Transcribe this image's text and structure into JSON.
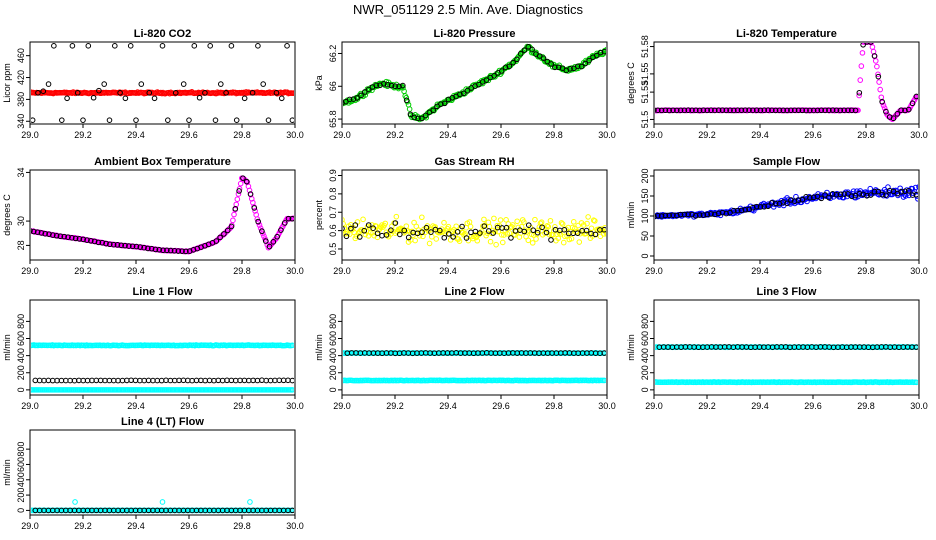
{
  "page": {
    "title": "NWR_051129  2.5 Min. Ave. Diagnostics"
  },
  "colors": {
    "black": "#000000",
    "red": "#ff0000",
    "green": "#00cc00",
    "magenta": "#ff00ff",
    "yellow": "#ffff00",
    "blue": "#0000ff",
    "cyan": "#00ffff"
  },
  "chart_data": [
    {
      "id": "co2",
      "type": "scatter",
      "title": "Li-820 CO2",
      "ylabel": "Licor ppm",
      "xlim": [
        29.0,
        30.0
      ],
      "ylim": [
        335,
        485
      ],
      "xticks": [
        "29.0",
        "29.2",
        "29.4",
        "29.6",
        "29.8",
        "30.0"
      ],
      "yticks": [
        340,
        380,
        420,
        460
      ],
      "series": [
        {
          "color": "#ff0000",
          "style": "dense",
          "base": 392,
          "noise": 2
        },
        {
          "color": "#000000",
          "style": "sparse",
          "points": [
            [
              29.01,
              342
            ],
            [
              29.03,
              392
            ],
            [
              29.05,
              395
            ],
            [
              29.07,
              408
            ],
            [
              29.09,
              478
            ],
            [
              29.12,
              342
            ],
            [
              29.14,
              382
            ],
            [
              29.16,
              478
            ],
            [
              29.18,
              392
            ],
            [
              29.2,
              342
            ],
            [
              29.22,
              478
            ],
            [
              29.24,
              383
            ],
            [
              29.26,
              396
            ],
            [
              29.28,
              408
            ],
            [
              29.3,
              342
            ],
            [
              29.32,
              478
            ],
            [
              29.34,
              392
            ],
            [
              29.36,
              382
            ],
            [
              29.38,
              478
            ],
            [
              29.4,
              342
            ],
            [
              29.42,
              408
            ],
            [
              29.45,
              392
            ],
            [
              29.47,
              382
            ],
            [
              29.5,
              478
            ],
            [
              29.52,
              342
            ],
            [
              29.55,
              392
            ],
            [
              29.58,
              408
            ],
            [
              29.6,
              342
            ],
            [
              29.62,
              478
            ],
            [
              29.64,
              383
            ],
            [
              29.66,
              392
            ],
            [
              29.68,
              478
            ],
            [
              29.7,
              342
            ],
            [
              29.72,
              408
            ],
            [
              29.74,
              392
            ],
            [
              29.76,
              478
            ],
            [
              29.78,
              342
            ],
            [
              29.81,
              382
            ],
            [
              29.84,
              392
            ],
            [
              29.86,
              478
            ],
            [
              29.88,
              408
            ],
            [
              29.9,
              342
            ],
            [
              29.93,
              392
            ],
            [
              29.95,
              382
            ],
            [
              29.97,
              478
            ],
            [
              29.99,
              342
            ]
          ]
        }
      ]
    },
    {
      "id": "pressure",
      "type": "scatter",
      "title": "Li-820 Pressure",
      "ylabel": "kPa",
      "xlim": [
        29.0,
        30.0
      ],
      "ylim": [
        65.77,
        66.27
      ],
      "xticks": [
        "29.0",
        "29.2",
        "29.4",
        "29.6",
        "29.8",
        "30.0"
      ],
      "yticks": [
        65.8,
        66.0,
        66.2
      ],
      "series": [
        {
          "color": "#00cc00",
          "style": "dense",
          "curve": [
            [
              29.0,
              65.9
            ],
            [
              29.05,
              65.92
            ],
            [
              29.1,
              65.98
            ],
            [
              29.15,
              66.02
            ],
            [
              29.2,
              66.0
            ],
            [
              29.23,
              66.0
            ],
            [
              29.26,
              65.82
            ],
            [
              29.3,
              65.8
            ],
            [
              29.36,
              65.88
            ],
            [
              29.42,
              65.93
            ],
            [
              29.5,
              66.0
            ],
            [
              29.58,
              66.07
            ],
            [
              29.65,
              66.15
            ],
            [
              29.7,
              66.24
            ],
            [
              29.75,
              66.18
            ],
            [
              29.8,
              66.12
            ],
            [
              29.85,
              66.1
            ],
            [
              29.9,
              66.12
            ],
            [
              29.95,
              66.18
            ],
            [
              30.0,
              66.22
            ]
          ],
          "noise": 0.02
        },
        {
          "color": "#000000",
          "style": "overlay",
          "curve": [
            [
              29.0,
              65.9
            ],
            [
              29.05,
              65.92
            ],
            [
              29.1,
              65.98
            ],
            [
              29.15,
              66.02
            ],
            [
              29.2,
              66.0
            ],
            [
              29.23,
              66.0
            ],
            [
              29.26,
              65.82
            ],
            [
              29.3,
              65.8
            ],
            [
              29.36,
              65.88
            ],
            [
              29.42,
              65.93
            ],
            [
              29.5,
              66.0
            ],
            [
              29.58,
              66.07
            ],
            [
              29.65,
              66.15
            ],
            [
              29.7,
              66.24
            ],
            [
              29.75,
              66.18
            ],
            [
              29.8,
              66.12
            ],
            [
              29.85,
              66.1
            ],
            [
              29.9,
              66.12
            ],
            [
              29.95,
              66.18
            ],
            [
              30.0,
              66.22
            ]
          ],
          "noise": 0.01
        }
      ]
    },
    {
      "id": "li820temp",
      "type": "scatter",
      "title": "Li-820 Temperature",
      "ylabel": "degrees C",
      "xlim": [
        29.0,
        30.0
      ],
      "ylim": [
        51.495,
        51.585
      ],
      "xticks": [
        "29.0",
        "29.2",
        "29.4",
        "29.6",
        "29.8",
        "30.0"
      ],
      "yticks": [
        51.5,
        51.53,
        51.55,
        51.58
      ],
      "series": [
        {
          "color": "#ff00ff",
          "style": "dense",
          "curve": [
            [
              29.0,
              51.51
            ],
            [
              29.77,
              51.51
            ],
            [
              29.78,
              51.55
            ],
            [
              29.79,
              51.585
            ],
            [
              29.82,
              51.585
            ],
            [
              29.84,
              51.56
            ],
            [
              29.86,
              51.52
            ],
            [
              29.88,
              51.505
            ],
            [
              29.9,
              51.5
            ],
            [
              29.93,
              51.51
            ],
            [
              29.96,
              51.51
            ],
            [
              29.99,
              51.525
            ]
          ],
          "noise": 0.0005
        },
        {
          "color": "#000000",
          "style": "overlay",
          "curve": [
            [
              29.0,
              51.51
            ],
            [
              29.77,
              51.51
            ],
            [
              29.78,
              51.55
            ],
            [
              29.79,
              51.585
            ],
            [
              29.82,
              51.585
            ],
            [
              29.84,
              51.56
            ],
            [
              29.86,
              51.52
            ],
            [
              29.88,
              51.505
            ],
            [
              29.9,
              51.5
            ],
            [
              29.93,
              51.51
            ],
            [
              29.96,
              51.51
            ],
            [
              29.99,
              51.525
            ]
          ],
          "noise": 0.0003
        }
      ]
    },
    {
      "id": "boxtemp",
      "type": "scatter",
      "title": "Ambient Box Temperature",
      "ylabel": "degrees C",
      "xlim": [
        29.0,
        30.0
      ],
      "ylim": [
        26.8,
        34.2
      ],
      "xticks": [
        "29.0",
        "29.2",
        "29.4",
        "29.6",
        "29.8",
        "30.0"
      ],
      "yticks": [
        28,
        30,
        34
      ],
      "series": [
        {
          "color": "#ff00ff",
          "style": "dense",
          "curve": [
            [
              29.0,
              29.2
            ],
            [
              29.05,
              29.0
            ],
            [
              29.1,
              28.8
            ],
            [
              29.2,
              28.5
            ],
            [
              29.3,
              28.1
            ],
            [
              29.4,
              27.9
            ],
            [
              29.5,
              27.6
            ],
            [
              29.6,
              27.5
            ],
            [
              29.7,
              28.3
            ],
            [
              29.76,
              29.5
            ],
            [
              29.8,
              33.6
            ],
            [
              29.82,
              33.2
            ],
            [
              29.86,
              30.0
            ],
            [
              29.9,
              27.8
            ],
            [
              29.93,
              28.6
            ],
            [
              29.97,
              30.2
            ],
            [
              29.99,
              30.2
            ]
          ],
          "noise": 0.04
        },
        {
          "color": "#000000",
          "style": "overlay",
          "curve": [
            [
              29.0,
              29.2
            ],
            [
              29.05,
              29.0
            ],
            [
              29.1,
              28.8
            ],
            [
              29.2,
              28.5
            ],
            [
              29.3,
              28.1
            ],
            [
              29.4,
              27.9
            ],
            [
              29.5,
              27.6
            ],
            [
              29.6,
              27.5
            ],
            [
              29.7,
              28.3
            ],
            [
              29.76,
              29.5
            ],
            [
              29.8,
              33.6
            ],
            [
              29.82,
              33.2
            ],
            [
              29.86,
              30.0
            ],
            [
              29.9,
              27.8
            ],
            [
              29.93,
              28.6
            ],
            [
              29.97,
              30.2
            ],
            [
              29.99,
              30.2
            ]
          ],
          "noise": 0.02
        }
      ]
    },
    {
      "id": "rh",
      "type": "scatter",
      "title": "Gas Stream RH",
      "ylabel": "percent",
      "xlim": [
        29.0,
        30.0
      ],
      "ylim": [
        0.44,
        0.93
      ],
      "xticks": [
        "29.0",
        "29.2",
        "29.4",
        "29.6",
        "29.8",
        "30.0"
      ],
      "yticks": [
        0.5,
        0.6,
        0.7,
        0.8,
        0.9
      ],
      "series": [
        {
          "color": "#ffff00",
          "style": "dense",
          "base": 0.6,
          "noise": 0.09
        },
        {
          "color": "#000000",
          "style": "sparse-noise",
          "base": 0.6,
          "noise": 0.06,
          "count": 60
        }
      ]
    },
    {
      "id": "sampleflow",
      "type": "scatter",
      "title": "Sample Flow",
      "ylabel": "ml/min",
      "xlim": [
        29.0,
        30.0
      ],
      "ylim": [
        -10,
        215
      ],
      "xticks": [
        "29.0",
        "29.2",
        "29.4",
        "29.6",
        "29.8",
        "30.0"
      ],
      "yticks": [
        0,
        50,
        100,
        150,
        200
      ],
      "series": [
        {
          "color": "#0000ff",
          "style": "dense",
          "curve": [
            [
              29.0,
              100
            ],
            [
              29.2,
              104
            ],
            [
              29.3,
              110
            ],
            [
              29.45,
              130
            ],
            [
              29.6,
              145
            ],
            [
              29.8,
              158
            ],
            [
              30.0,
              160
            ]
          ],
          "noise": 12,
          "noiseGrow": true
        },
        {
          "color": "#000000",
          "style": "overlay",
          "curve": [
            [
              29.0,
              100
            ],
            [
              29.2,
              104
            ],
            [
              29.3,
              110
            ],
            [
              29.45,
              130
            ],
            [
              29.6,
              145
            ],
            [
              29.8,
              158
            ],
            [
              30.0,
              160
            ]
          ],
          "noise": 8,
          "noiseGrow": true
        }
      ]
    },
    {
      "id": "line1",
      "type": "scatter",
      "title": "Line 1 Flow",
      "ylabel": "ml/min",
      "xlim": [
        29.0,
        30.0
      ],
      "ylim": [
        -60,
        1050
      ],
      "xticks": [
        "29.0",
        "29.2",
        "29.4",
        "29.6",
        "29.8",
        "30.0"
      ],
      "yticks": [
        0,
        200,
        400,
        600,
        800
      ],
      "series": [
        {
          "color": "#00ffff",
          "style": "flat",
          "base": 520,
          "noise": 6
        },
        {
          "color": "#00ffff",
          "style": "flat",
          "base": 0,
          "noise": 0
        },
        {
          "color": "#000000",
          "style": "flat-sparse",
          "base": 110,
          "noise": 3
        }
      ]
    },
    {
      "id": "line2",
      "type": "scatter",
      "title": "Line 2 Flow",
      "ylabel": "ml/min",
      "xlim": [
        29.0,
        30.0
      ],
      "ylim": [
        -60,
        1050
      ],
      "xticks": [
        "29.0",
        "29.2",
        "29.4",
        "29.6",
        "29.8",
        "30.0"
      ],
      "yticks": [
        0,
        200,
        400,
        600,
        800
      ],
      "series": [
        {
          "color": "#00ffff",
          "style": "flat",
          "base": 110,
          "noise": 4
        },
        {
          "color": "#00ffff",
          "style": "flat",
          "base": 430,
          "noise": 4
        },
        {
          "color": "#000000",
          "style": "flat-sparse",
          "base": 430,
          "noise": 4
        }
      ]
    },
    {
      "id": "line3",
      "type": "scatter",
      "title": "Line 3 Flow",
      "ylabel": "ml/min",
      "xlim": [
        29.0,
        30.0
      ],
      "ylim": [
        -60,
        1050
      ],
      "xticks": [
        "29.0",
        "29.2",
        "29.4",
        "29.6",
        "29.8",
        "30.0"
      ],
      "yticks": [
        0,
        200,
        400,
        600,
        800
      ],
      "series": [
        {
          "color": "#00ffff",
          "style": "flat",
          "base": 90,
          "noise": 4
        },
        {
          "color": "#00ffff",
          "style": "flat",
          "base": 500,
          "noise": 4
        },
        {
          "color": "#000000",
          "style": "flat-sparse",
          "base": 500,
          "noise": 4
        }
      ]
    },
    {
      "id": "line4",
      "type": "scatter",
      "title": "Line 4 (LT) Flow",
      "ylabel": "ml/min",
      "xlim": [
        29.0,
        30.0
      ],
      "ylim": [
        -60,
        1050
      ],
      "xticks": [
        "29.0",
        "29.2",
        "29.4",
        "29.6",
        "29.8",
        "30.0"
      ],
      "yticks": [
        0,
        200,
        400,
        600,
        800
      ],
      "series": [
        {
          "color": "#00ffff",
          "style": "flat",
          "base": 0,
          "noise": 1
        },
        {
          "color": "#000000",
          "style": "flat-sparse",
          "base": 0,
          "noise": 1
        },
        {
          "color": "#00ffff",
          "style": "points",
          "points": [
            [
              29.17,
              110
            ],
            [
              29.5,
              110
            ],
            [
              29.83,
              110
            ]
          ]
        }
      ]
    }
  ]
}
